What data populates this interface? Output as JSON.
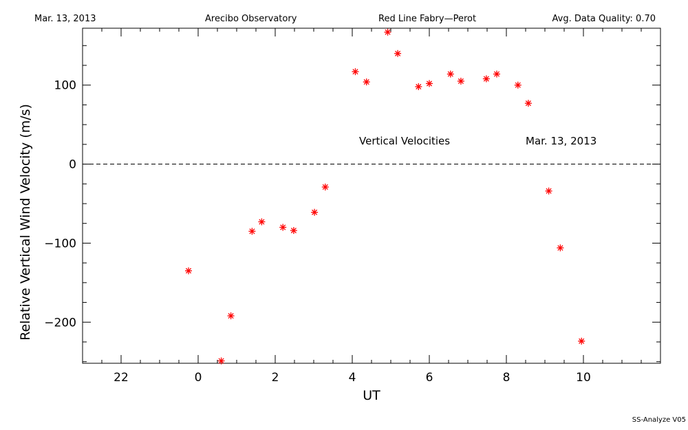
{
  "header": {
    "date": "Mar. 13, 2013",
    "site": "Arecibo Observatory",
    "instrument": "Red Line Fabry—Perot",
    "quality": "Avg. Data Quality: 0.70"
  },
  "footer": {
    "software": "SS-Analyze V05"
  },
  "chart_data": {
    "type": "scatter",
    "xlabel": "UT",
    "ylabel": "Relative Vertical Wind Velocity (m/s)",
    "annotations": [
      "Vertical Velocities",
      "Mar. 13, 2013"
    ],
    "x_ticks": [
      22,
      0,
      2,
      4,
      6,
      8,
      10
    ],
    "x_tick_labels": [
      "22",
      "0",
      "2",
      "4",
      "6",
      "8",
      "10"
    ],
    "y_ticks": [
      -200,
      -100,
      0,
      100
    ],
    "y_tick_labels": [
      "−200",
      "−100",
      "0",
      "100"
    ],
    "xlim": [
      -3.0,
      12.0
    ],
    "ylim": [
      -252,
      172
    ],
    "reference_line": {
      "y": 0,
      "style": "dashed"
    },
    "marker": "asterisk",
    "marker_color": "#ff0000",
    "grid": false,
    "series": [
      {
        "x": [
          -0.25,
          0.6,
          0.85,
          1.4,
          1.65,
          2.2,
          2.48,
          3.02,
          3.3,
          4.08,
          4.37,
          4.92,
          5.18,
          5.72,
          6.0,
          6.55,
          6.82,
          7.48,
          7.75,
          8.3,
          8.57,
          9.1,
          9.4,
          9.95
        ],
        "y": [
          -135,
          -249,
          -192,
          -85,
          -73,
          -80,
          -84,
          -61,
          -29,
          117,
          104,
          167,
          140,
          98,
          102,
          114,
          105,
          108,
          114,
          100,
          77,
          -34,
          -106,
          -224
        ]
      }
    ]
  }
}
